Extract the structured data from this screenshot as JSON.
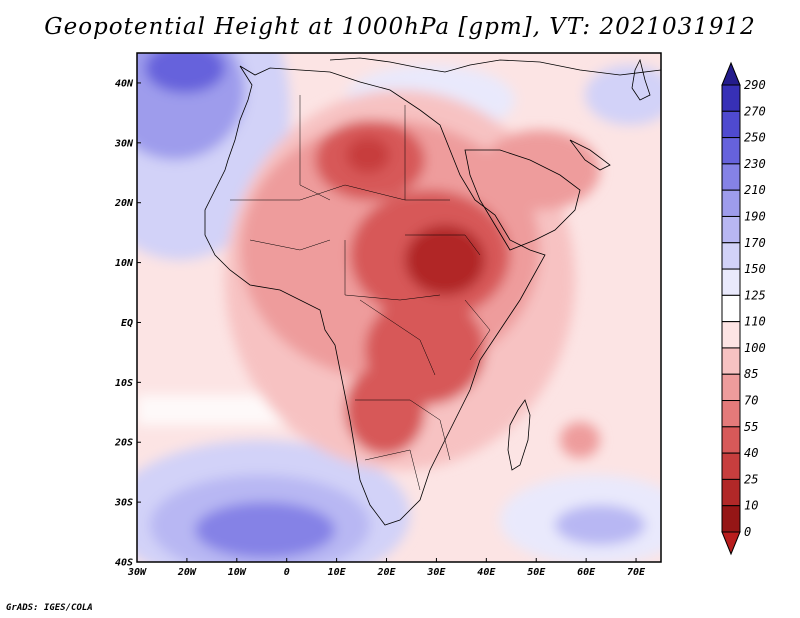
{
  "title": "Geopotential Height at 1000hPa [gpm], VT: 2021031912",
  "credit": "GrADS: IGES/COLA",
  "map": {
    "lon_labels": [
      "30W",
      "20W",
      "10W",
      "0",
      "10E",
      "20E",
      "30E",
      "40E",
      "50E",
      "60E",
      "70E"
    ],
    "lat_labels": [
      "40N",
      "30N",
      "20N",
      "10N",
      "EQ",
      "10S",
      "20S",
      "30S",
      "40S"
    ]
  },
  "colorbar": {
    "levels": [
      "290",
      "270",
      "250",
      "230",
      "210",
      "190",
      "170",
      "150",
      "125",
      "110",
      "100",
      "85",
      "70",
      "55",
      "40",
      "25",
      "10",
      "0"
    ],
    "colors": [
      "#241c8c",
      "#3730b6",
      "#4f4ad0",
      "#6662dc",
      "#8582e6",
      "#9e9cec",
      "#b8b7f3",
      "#d2d2f8",
      "#e9e9fc",
      "#ffffff",
      "#fde4e4",
      "#f7c2c2",
      "#ee9c9c",
      "#e47a7a",
      "#d75959",
      "#c73e3e",
      "#b12828",
      "#951616",
      "#b81d1d"
    ]
  },
  "chart_data": {
    "type": "heatmap",
    "title": "Geopotential Height at 1000hPa [gpm], VT: 2021031912",
    "variable": "Geopotential Height",
    "level": "1000hPa",
    "units": "gpm",
    "valid_time": "2021031912",
    "lon_range": [
      -30,
      75
    ],
    "lat_range": [
      -40,
      45
    ],
    "x_ticks": [
      "30W",
      "20W",
      "10W",
      "0",
      "10E",
      "20E",
      "30E",
      "40E",
      "50E",
      "60E",
      "70E"
    ],
    "y_ticks": [
      "40N",
      "30N",
      "20N",
      "10N",
      "EQ",
      "10S",
      "20S",
      "30S",
      "40S"
    ],
    "contour_levels": [
      0,
      10,
      25,
      40,
      55,
      70,
      85,
      100,
      110,
      125,
      150,
      170,
      190,
      210,
      230,
      250,
      270,
      290
    ],
    "features": [
      {
        "name": "high-NW-Atlantic",
        "lon": -20,
        "lat": 43,
        "value": 210
      },
      {
        "name": "high-S-Atlantic",
        "lon": -10,
        "lat": -34,
        "value": 200
      },
      {
        "name": "high-Indian-Ocean",
        "lon": 62,
        "lat": -36,
        "value": 160
      },
      {
        "name": "high-Mediterranean",
        "lon": 25,
        "lat": 38,
        "value": 140
      },
      {
        "name": "high-Iran",
        "lon": 64,
        "lat": 37,
        "value": 140
      },
      {
        "name": "low-Sudan",
        "lon": 32,
        "lat": 10,
        "value": 35
      },
      {
        "name": "low-Libya",
        "lon": 17,
        "lat": 27,
        "value": 40
      },
      {
        "name": "low-Rift",
        "lon": 32,
        "lat": -5,
        "value": 42
      },
      {
        "name": "low-Kalahari",
        "lon": 20,
        "lat": -17,
        "value": 48
      }
    ]
  }
}
